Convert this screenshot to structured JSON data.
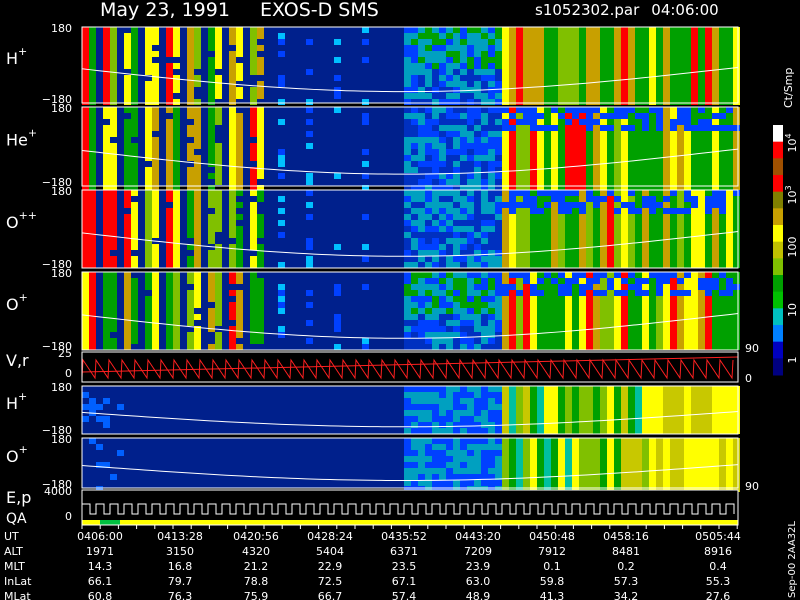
{
  "header": {
    "date": "May 23, 1991",
    "instrument": "EXOS-D SMS",
    "file": "s1052302.par",
    "time": "04:06:00"
  },
  "panels": [
    {
      "label": "H",
      "sup": "+",
      "ticks": [
        "180",
        "−180"
      ]
    },
    {
      "label": "He",
      "sup": "+",
      "ticks": [
        "180",
        "−180"
      ]
    },
    {
      "label": "O",
      "sup": "++",
      "ticks": [
        "180",
        "−180"
      ]
    },
    {
      "label": "O",
      "sup": "+",
      "ticks": [
        "180",
        "−180"
      ]
    },
    {
      "label": "V,r",
      "ticks": [
        "25",
        "0"
      ],
      "right_ticks": [
        "90",
        "0"
      ]
    },
    {
      "label": "H",
      "sup": "+",
      "ticks": [
        "180",
        "−180"
      ]
    },
    {
      "label": "O",
      "sup": "+",
      "ticks": [
        "180",
        "−180"
      ],
      "right_ticks": [
        "90"
      ]
    },
    {
      "label": "E,p",
      "label2": "QA",
      "ticks": [
        "4000",
        "0"
      ]
    }
  ],
  "colorbar": {
    "unit": "Ct/Smp",
    "ticks": [
      {
        "base": "10",
        "exp": "4"
      },
      {
        "base": "10",
        "exp": "3"
      },
      "100",
      "10",
      "1"
    ]
  },
  "table": {
    "rows": [
      [
        "UT",
        "0406:00",
        "0413:28",
        "0420:56",
        "0428:24",
        "0435:52",
        "0443:20",
        "0450:48",
        "0458:16",
        "0505:44"
      ],
      [
        "ALT",
        "1971",
        "3150",
        "4320",
        "5404",
        "6371",
        "7209",
        "7912",
        "8481",
        "8916"
      ],
      [
        "MLT",
        "14.3",
        "16.8",
        "21.2",
        "22.9",
        "23.5",
        "23.9",
        "0.1",
        "0.2",
        "0.4"
      ],
      [
        "InLat",
        "66.1",
        "79.7",
        "78.8",
        "72.5",
        "67.1",
        "63.0",
        "59.8",
        "57.3",
        "55.3"
      ],
      [
        "MLat",
        "60.8",
        "76.3",
        "75.9",
        "66.7",
        "57.4",
        "48.9",
        "41.3",
        "34.2",
        "27.6"
      ]
    ]
  },
  "footer": "Sep-00  2AA32L"
}
